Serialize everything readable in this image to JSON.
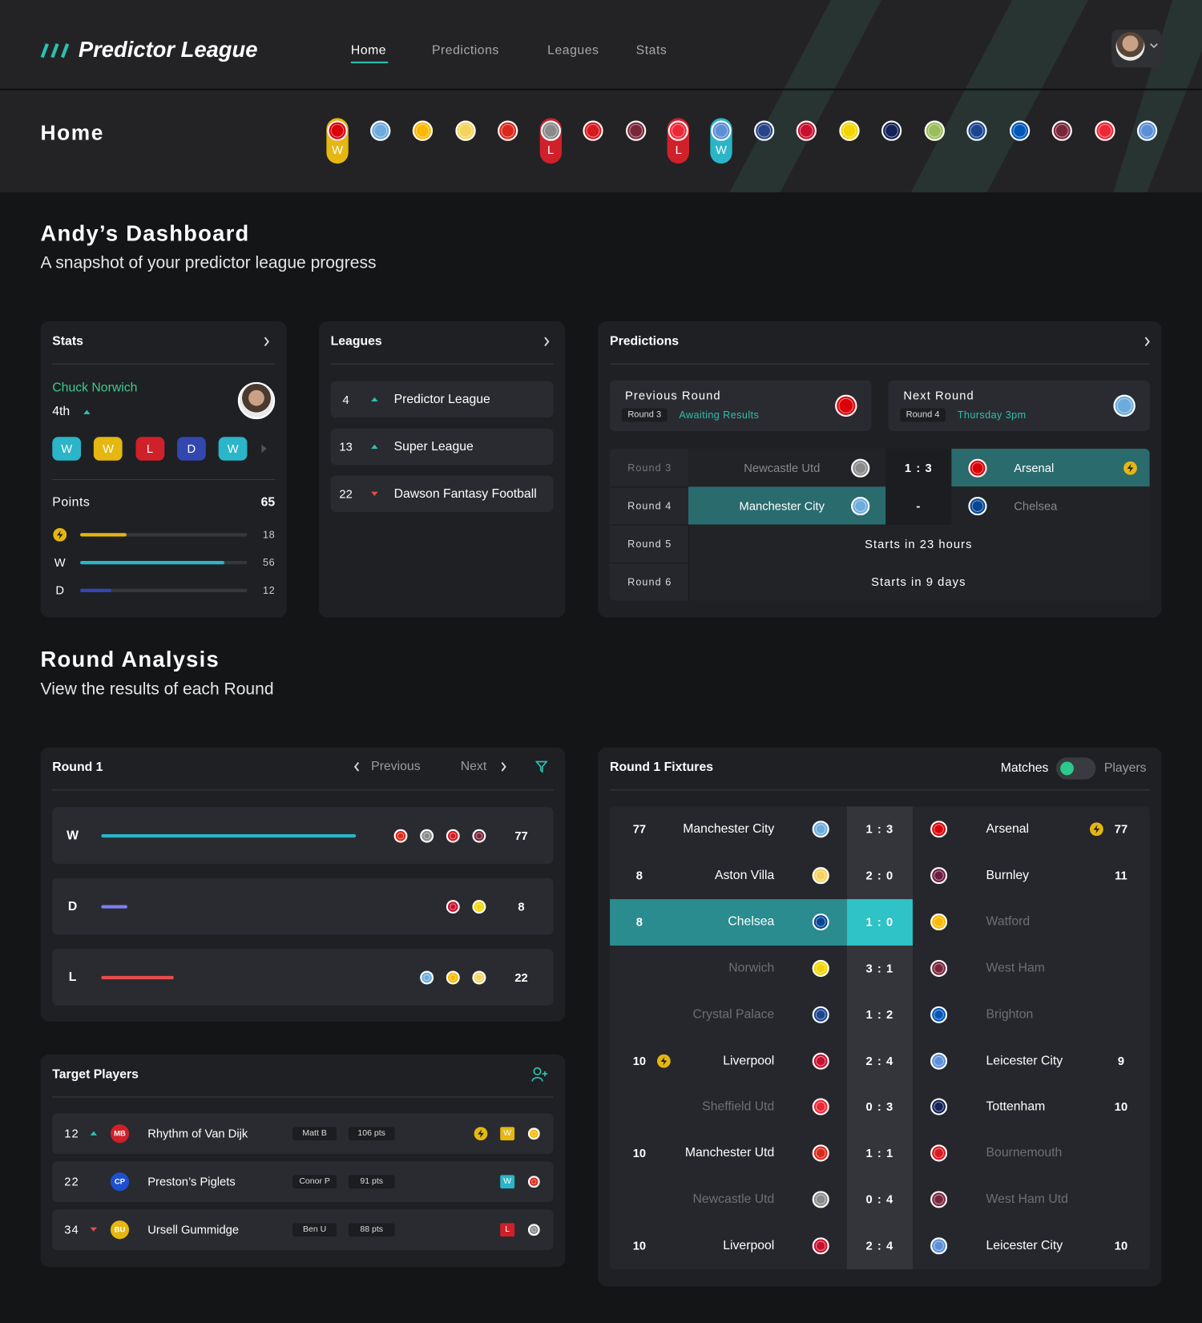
{
  "header": {
    "logo": "Predictor League",
    "nav": [
      "Home",
      "Predictions",
      "Leagues",
      "Stats"
    ]
  },
  "subheader": {
    "title": "Home",
    "form": [
      {
        "badge": "#db0007",
        "result": "W",
        "pill": "#e5b710"
      },
      {
        "badge": "#6cabdd"
      },
      {
        "badge": "#fbb800"
      },
      {
        "badge": "#f4d35e"
      },
      {
        "badge": "#da291c"
      },
      {
        "badge": "#8a8a8a",
        "result": "L",
        "pill": "#d0202a"
      },
      {
        "badge": "#d71920"
      },
      {
        "badge": "#7a263a"
      },
      {
        "badge": "#ee2737",
        "result": "L",
        "pill": "#d0202a"
      },
      {
        "badge": "#5c8fd6",
        "result": "W",
        "pill": "#2bb5c8"
      },
      {
        "badge": "#274488"
      },
      {
        "badge": "#c8102e"
      },
      {
        "badge": "#f2d500"
      },
      {
        "badge": "#132257"
      },
      {
        "badge": "#9bbd5a"
      },
      {
        "badge": "#1b458f"
      },
      {
        "badge": "#0057b8"
      },
      {
        "badge": "#7a263a"
      },
      {
        "badge": "#ee2737"
      },
      {
        "badge": "#5c8fd6"
      }
    ]
  },
  "dashboard": {
    "title": "Andy’s Dashboard",
    "subtitle": "A snapshot of your predictor league progress"
  },
  "stats": {
    "title": "Stats",
    "player": "Chuck Norwich",
    "rank": "4th",
    "form": [
      {
        "result": "W",
        "color": "#2bb5c8"
      },
      {
        "result": "W",
        "color": "#e5b710"
      },
      {
        "result": "L",
        "color": "#d0202a"
      },
      {
        "result": "D",
        "color": "#3347b0"
      },
      {
        "result": "W",
        "color": "#2bb5c8"
      }
    ],
    "points_label": "Points",
    "points": 65,
    "bars": [
      {
        "value": 18,
        "color": "#e5b710"
      },
      {
        "label": "W",
        "value": 56,
        "color": "#2bb5c8"
      },
      {
        "label": "D",
        "value": 12,
        "color": "#3347b0"
      }
    ]
  },
  "leagues": {
    "title": "Leagues",
    "rows": [
      {
        "rank": 4,
        "trend": "up",
        "name": "Predictor League"
      },
      {
        "rank": 13,
        "trend": "up",
        "name": "Super League"
      },
      {
        "rank": 22,
        "trend": "down",
        "name": "Dawson Fantasy Football"
      }
    ]
  },
  "predictions": {
    "title": "Predictions",
    "previous": {
      "label": "Previous Round",
      "round": "Round 3",
      "status": "Awaiting Results",
      "badge": "#db0007"
    },
    "next": {
      "label": "Next Round",
      "round": "Round 4",
      "status": "Thursday 3pm",
      "badge": "#6cabdd"
    },
    "rows": [
      {
        "round": "Round 3",
        "home": "Newcastle Utd",
        "home_badge": "#8a8a8a",
        "score": "1 : 3",
        "away": "Arsenal",
        "away_badge": "#db0007",
        "pick": "away",
        "boost": true
      },
      {
        "round": "Round 4",
        "home": "Manchester City",
        "home_badge": "#6cabdd",
        "score": "-",
        "away": "Chelsea",
        "away_badge": "#034694",
        "pick": "home"
      },
      {
        "round": "Round 5",
        "text": "Starts in 23 hours"
      },
      {
        "round": "Round 6",
        "text": "Starts in 9 days"
      }
    ]
  },
  "round_analysis": {
    "title": "Round Analysis",
    "subtitle": "View the results of each Round"
  },
  "round": {
    "title": "Round 1",
    "previous": "Previous",
    "next": "Next",
    "rows": [
      {
        "label": "W",
        "value": 77,
        "color": "#2bb5c8",
        "badges": [
          "#da291c",
          "#8a8a8a",
          "#d71920",
          "#7a263a"
        ]
      },
      {
        "label": "D",
        "value": 8,
        "color": "#7b7ff0",
        "badges": [
          "#c8102e",
          "#f2d500"
        ]
      },
      {
        "label": "L",
        "value": 22,
        "color": "#e84c4c",
        "badges": [
          "#6cabdd",
          "#fbb800",
          "#f4d35e"
        ]
      }
    ]
  },
  "target": {
    "title": "Target Players",
    "rows": [
      {
        "rank": 12,
        "trend": "up",
        "initials": "MB",
        "initials_color": "#d0202a",
        "name": "Rhythm of Van Dijk",
        "manager": "Matt B",
        "points": "106 pts",
        "boost": true,
        "result": "W",
        "result_color": "#e5b710",
        "badge": "#fbb800"
      },
      {
        "rank": 22,
        "initials": "CP",
        "initials_color": "#1d4fd0",
        "name": "Preston’s Piglets",
        "manager": "Conor P",
        "points": "91 pts",
        "result": "W",
        "result_color": "#2bb5c8",
        "badge": "#da291c"
      },
      {
        "rank": 34,
        "trend": "down",
        "initials": "BU",
        "initials_color": "#e5b710",
        "name": "Ursell Gummidge",
        "manager": "Ben U",
        "points": "88 pts",
        "result": "L",
        "result_color": "#d0202a",
        "badge": "#8a8a8a"
      }
    ]
  },
  "fixtures": {
    "title": "Round 1 Fixtures",
    "toggle": [
      "Matches",
      "Players"
    ],
    "rows": [
      {
        "home_pts": 77,
        "home": "Manchester City",
        "home_badge": "#6cabdd",
        "score": "1 : 3",
        "away": "Arsenal",
        "away_badge": "#db0007",
        "away_pts": 77,
        "away_boost": true,
        "home_on": true,
        "away_on": true
      },
      {
        "home_pts": 8,
        "home": "Aston Villa",
        "home_badge": "#f4d35e",
        "score": "2 : 0",
        "away": "Burnley",
        "away_badge": "#6c1d45",
        "away_pts": 11,
        "home_on": true,
        "away_on": true
      },
      {
        "home_pts": 8,
        "home": "Chelsea",
        "home_badge": "#034694",
        "score": "1 : 0",
        "away": "Watford",
        "away_badge": "#fbb800",
        "home_on": true,
        "away_on": false,
        "highlight": true
      },
      {
        "home": "Norwich",
        "home_badge": "#f2d500",
        "score": "3 : 1",
        "away": "West Ham",
        "away_badge": "#7a263a",
        "home_on": false,
        "away_on": false
      },
      {
        "home": "Crystal Palace",
        "home_badge": "#1b458f",
        "score": "1 : 2",
        "away": "Brighton",
        "away_badge": "#0057b8",
        "home_on": false,
        "away_on": false
      },
      {
        "home_pts": 10,
        "home_boost": true,
        "home": "Liverpool",
        "home_badge": "#c8102e",
        "score": "2 : 4",
        "away": "Leicester City",
        "away_badge": "#5c8fd6",
        "away_pts": 9,
        "home_on": true,
        "away_on": true
      },
      {
        "home": "Sheffield Utd",
        "home_badge": "#ee2737",
        "score": "0 : 3",
        "away": "Tottenham",
        "away_badge": "#132257",
        "away_pts": 10,
        "home_on": false,
        "away_on": true
      },
      {
        "home_pts": 10,
        "home": "Manchester Utd",
        "home_badge": "#da291c",
        "score": "1 : 1",
        "away": "Bournemouth",
        "away_badge": "#d71920",
        "home_on": true,
        "away_on": false
      },
      {
        "home": "Newcastle Utd",
        "home_badge": "#8a8a8a",
        "score": "0 : 4",
        "away": "West Ham Utd",
        "away_badge": "#7a263a",
        "home_on": false,
        "away_on": false
      },
      {
        "home_pts": 10,
        "home": "Liverpool",
        "home_badge": "#c8102e",
        "score": "2 : 4",
        "away": "Leicester City",
        "away_badge": "#5c8fd6",
        "away_pts": 10,
        "home_on": true,
        "away_on": true
      }
    ]
  }
}
